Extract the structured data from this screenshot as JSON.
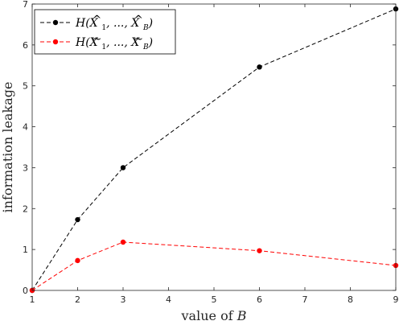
{
  "chart_data": {
    "type": "line",
    "xlabel": "value of B",
    "ylabel": "information leakage",
    "xlim": [
      1,
      9
    ],
    "ylim": [
      0,
      7
    ],
    "xticks": [
      1,
      2,
      3,
      4,
      5,
      6,
      7,
      8,
      9
    ],
    "yticks": [
      0,
      1,
      2,
      3,
      4,
      5,
      6,
      7
    ],
    "grid": false,
    "legend_position": "top-left",
    "series": [
      {
        "name": "H(X̂_1, ..., X̂_B)",
        "color": "#000000",
        "line_style": "dashed",
        "marker": "circle",
        "x": [
          1,
          2,
          3,
          6,
          9
        ],
        "y": [
          0,
          1.73,
          3.0,
          5.46,
          6.88
        ]
      },
      {
        "name": "H(X̃_1, ..., X̃_B)",
        "color": "#ff0000",
        "line_style": "dashed",
        "marker": "circle",
        "x": [
          1,
          2,
          3,
          6,
          9
        ],
        "y": [
          0,
          0.73,
          1.18,
          0.97,
          0.61
        ]
      }
    ]
  }
}
